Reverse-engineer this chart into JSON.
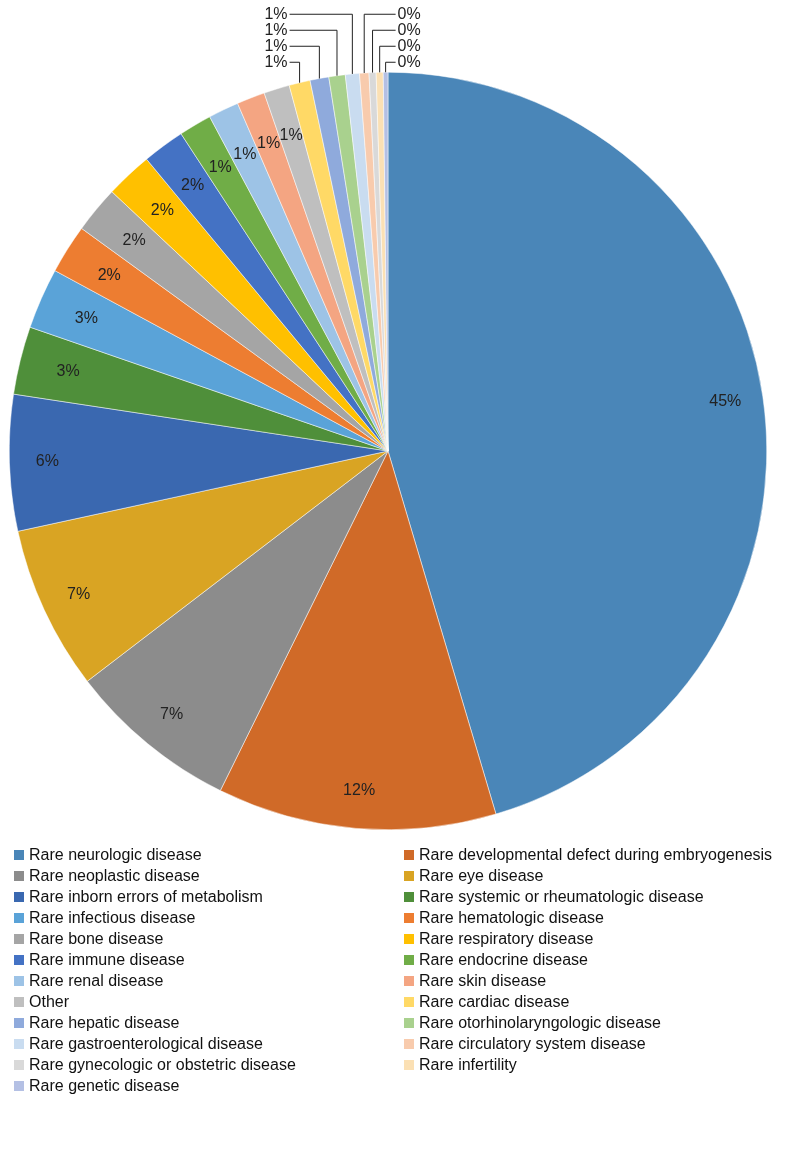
{
  "chart_data": {
    "type": "pie",
    "categories": [
      "Rare neurologic disease",
      "Rare developmental defect during embryogenesis",
      "Rare neoplastic disease",
      "Rare eye disease",
      "Rare inborn errors of metabolism",
      "Rare systemic or rheumatologic disease",
      "Rare infectious disease",
      "Rare hematologic disease",
      "Rare bone disease",
      "Rare respiratory disease",
      "Rare immune disease",
      "Rare endocrine disease",
      "Rare renal disease",
      "Rare skin disease",
      "Other",
      "Rare cardiac disease",
      "Rare hepatic disease",
      "Rare otorhinolaryngologic disease",
      "Rare gastroenterological disease",
      "Rare circulatory system disease",
      "Rare gynecologic or obstetric disease",
      "Rare infertility",
      "Rare genetic disease"
    ],
    "values": [
      45.4,
      11.9,
      7.3,
      7.0,
      5.8,
      2.9,
      2.6,
      2.1,
      2.0,
      2.0,
      1.8,
      1.4,
      1.3,
      1.2,
      1.1,
      0.9,
      0.8,
      0.7,
      0.6,
      0.4,
      0.3,
      0.3,
      0.2
    ],
    "value_labels": [
      "45%",
      "12%",
      "7%",
      "7%",
      "6%",
      "3%",
      "3%",
      "2%",
      "2%",
      "2%",
      "2%",
      "1%",
      "1%",
      "1%",
      "1%",
      "1%",
      "1%",
      "1%",
      "1%",
      "0%",
      "0%",
      "0%",
      "0%"
    ],
    "colors": [
      "#4a86b8",
      "#d06a28",
      "#8c8c8c",
      "#d9a423",
      "#3a68b0",
      "#4f8f3a",
      "#5aa3d8",
      "#ed7d31",
      "#a5a5a5",
      "#ffc000",
      "#4472c4",
      "#70ad47",
      "#9dc3e6",
      "#f4a582",
      "#bfbfbf",
      "#ffd966",
      "#8faadc",
      "#a9d18e",
      "#c9dcf0",
      "#f8cbad",
      "#d9d9d9",
      "#fbe0b4",
      "#b4c0e4"
    ],
    "legend": "bottom"
  }
}
